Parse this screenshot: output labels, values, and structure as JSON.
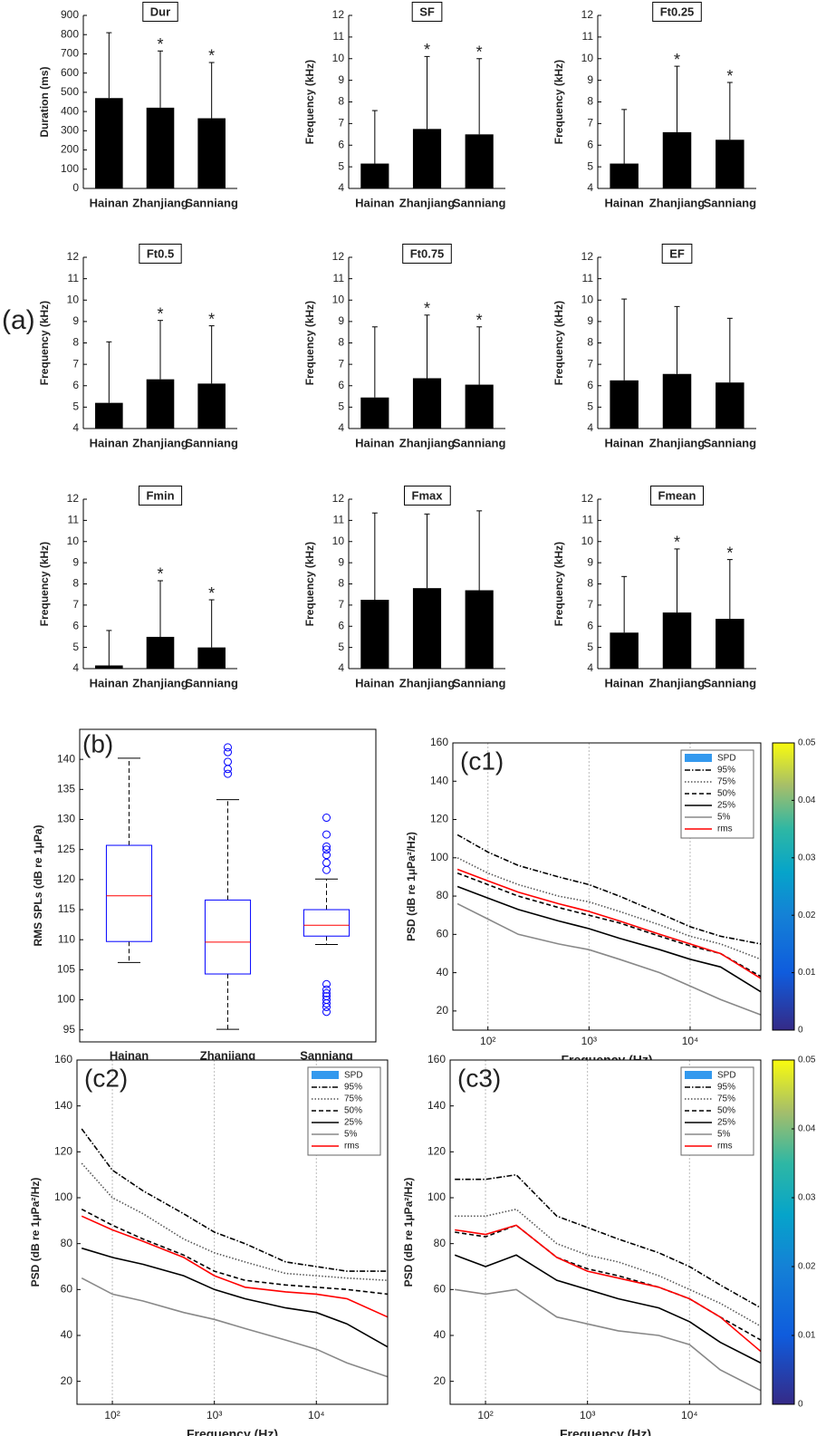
{
  "labels": {
    "a": "(a)"
  },
  "chart_data": [
    {
      "type": "bar",
      "title": "Dur",
      "ylabel": "Duration (ms)",
      "categories": [
        "Hainan",
        "Zhanjiang",
        "Sanniang"
      ],
      "values": [
        470,
        420,
        365
      ],
      "errors": [
        340,
        295,
        290
      ],
      "markers": [
        null,
        "*",
        "*"
      ],
      "color": "#000000",
      "ylim": [
        0,
        900
      ],
      "yticks": [
        0,
        100,
        200,
        300,
        400,
        500,
        600,
        700,
        800,
        900
      ]
    },
    {
      "type": "bar",
      "title": "SF",
      "ylabel": "Frequency (kHz)",
      "categories": [
        "Hainan",
        "Zhanjiang",
        "Sanniang"
      ],
      "values": [
        5.15,
        6.75,
        6.5
      ],
      "errors": [
        2.45,
        3.35,
        3.5
      ],
      "markers": [
        null,
        "*",
        "*"
      ],
      "color": "#000000",
      "ylim": [
        4,
        12
      ],
      "yticks": [
        4,
        5,
        6,
        7,
        8,
        9,
        10,
        11,
        12
      ]
    },
    {
      "type": "bar",
      "title": "Ft0.25",
      "ylabel": "Frequency (kHz)",
      "categories": [
        "Hainan",
        "Zhanjiang",
        "Sanniang"
      ],
      "values": [
        5.15,
        6.6,
        6.25
      ],
      "errors": [
        2.5,
        3.05,
        2.65
      ],
      "markers": [
        null,
        "*",
        "*"
      ],
      "color": "#000000",
      "ylim": [
        4,
        12
      ],
      "yticks": [
        4,
        5,
        6,
        7,
        8,
        9,
        10,
        11,
        12
      ]
    },
    {
      "type": "bar",
      "title": "Ft0.5",
      "ylabel": "Frequency (kHz)",
      "categories": [
        "Hainan",
        "Zhanjiang",
        "Sanniang"
      ],
      "values": [
        5.2,
        6.3,
        6.1
      ],
      "errors": [
        2.85,
        2.75,
        2.7
      ],
      "markers": [
        null,
        "*",
        "*"
      ],
      "color": "#000000",
      "ylim": [
        4,
        12
      ],
      "yticks": [
        4,
        5,
        6,
        7,
        8,
        9,
        10,
        11,
        12
      ]
    },
    {
      "type": "bar",
      "title": "Ft0.75",
      "ylabel": "Frequency (kHz)",
      "categories": [
        "Hainan",
        "Zhanjiang",
        "Sanniang"
      ],
      "values": [
        5.45,
        6.35,
        6.05
      ],
      "errors": [
        3.3,
        2.95,
        2.7
      ],
      "markers": [
        null,
        "*",
        "*"
      ],
      "color": "#000000",
      "ylim": [
        4,
        12
      ],
      "yticks": [
        4,
        5,
        6,
        7,
        8,
        9,
        10,
        11,
        12
      ]
    },
    {
      "type": "bar",
      "title": "EF",
      "ylabel": "Frequency (kHz)",
      "categories": [
        "Hainan",
        "Zhanjiang",
        "Sanniang"
      ],
      "values": [
        6.25,
        6.55,
        6.15
      ],
      "errors": [
        3.8,
        3.15,
        3.0
      ],
      "color": "#000000",
      "ylim": [
        4,
        12
      ],
      "yticks": [
        4,
        5,
        6,
        7,
        8,
        9,
        10,
        11,
        12
      ]
    },
    {
      "type": "bar",
      "title": "Fmin",
      "ylabel": "Frequency (kHz)",
      "categories": [
        "Hainan",
        "Zhanjiang",
        "Sanniang"
      ],
      "values": [
        4.15,
        5.5,
        5.0
      ],
      "errors": [
        1.65,
        2.65,
        2.25
      ],
      "markers": [
        null,
        "*",
        "*"
      ],
      "color": "#000000",
      "ylim": [
        4,
        12
      ],
      "yticks": [
        4,
        5,
        6,
        7,
        8,
        9,
        10,
        11,
        12
      ]
    },
    {
      "type": "bar",
      "title": "Fmax",
      "ylabel": "Frequency (kHz)",
      "categories": [
        "Hainan",
        "Zhanjiang",
        "Sanniang"
      ],
      "values": [
        7.25,
        7.8,
        7.7
      ],
      "errors": [
        4.1,
        3.5,
        3.75
      ],
      "color": "#000000",
      "ylim": [
        4,
        12
      ],
      "yticks": [
        4,
        5,
        6,
        7,
        8,
        9,
        10,
        11,
        12
      ]
    },
    {
      "type": "bar",
      "title": "Fmean",
      "ylabel": "Frequency (kHz)",
      "categories": [
        "Hainan",
        "Zhanjiang",
        "Sanniang"
      ],
      "values": [
        5.7,
        6.65,
        6.35
      ],
      "errors": [
        2.65,
        3.0,
        2.8
      ],
      "markers": [
        null,
        "*",
        "*"
      ],
      "color": "#000000",
      "ylim": [
        4,
        12
      ],
      "yticks": [
        4,
        5,
        6,
        7,
        8,
        9,
        10,
        11,
        12
      ]
    },
    {
      "type": "box",
      "panel_label": "(b)",
      "ylabel": "RMS SPLs (dB re 1μPa)",
      "categories": [
        "Hainan",
        "Zhanjiang",
        "Sanniang"
      ],
      "boxes": [
        {
          "min": 106.2,
          "q1": 109.7,
          "median": 117.3,
          "q3": 125.7,
          "max": 140.2,
          "outliers": []
        },
        {
          "min": 95.1,
          "q1": 104.3,
          "median": 109.6,
          "q3": 116.6,
          "max": 133.3,
          "outliers": [
            137.6,
            138.4,
            139.6,
            141.2,
            142.0
          ]
        },
        {
          "min": 109.2,
          "q1": 110.6,
          "median": 112.4,
          "q3": 115.0,
          "max": 120.1,
          "outliers": [
            121.6,
            122.8,
            124.1,
            125.0,
            125.5,
            127.5,
            130.3,
            102.6,
            101.7,
            101.1,
            100.6,
            100.0,
            99.4,
            98.8,
            98.0
          ]
        }
      ],
      "box_color": "#0000ff",
      "median_color": "#ff0000",
      "ylim": [
        93,
        145
      ],
      "yticks": [
        95,
        100,
        105,
        110,
        115,
        120,
        125,
        130,
        135,
        140
      ]
    },
    {
      "type": "line",
      "panel_label": "(c1)",
      "xlabel": "Frequency (Hz)",
      "ylabel": "PSD (dB re 1μPa²/Hz)",
      "xscale": "log",
      "x": [
        50,
        100,
        200,
        500,
        1000,
        2000,
        5000,
        10000,
        20000,
        50000
      ],
      "series": [
        {
          "name": "95%",
          "color": "#000000",
          "linestyle": "dashdot",
          "values": [
            112,
            103,
            96,
            90,
            86,
            80,
            71,
            64,
            59,
            55
          ]
        },
        {
          "name": "75%",
          "color": "#555555",
          "linestyle": "dotted",
          "values": [
            100,
            92,
            86,
            80,
            77,
            72,
            65,
            59,
            55,
            47
          ]
        },
        {
          "name": "50%",
          "color": "#000000",
          "linestyle": "dashed",
          "values": [
            92,
            86,
            80,
            74,
            70,
            66,
            59,
            54,
            50,
            38
          ]
        },
        {
          "name": "25%",
          "color": "#000000",
          "linestyle": "solid",
          "values": [
            85,
            79,
            73,
            67,
            63,
            58,
            52,
            47,
            43,
            30
          ]
        },
        {
          "name": "5%",
          "color": "#888888",
          "linestyle": "solid",
          "values": [
            76,
            68,
            60,
            55,
            52,
            47,
            40,
            33,
            26,
            18
          ]
        },
        {
          "name": "rms",
          "color": "#ff0000",
          "linestyle": "solid",
          "values": [
            94,
            88,
            82,
            76,
            72,
            67,
            60,
            55,
            50,
            37
          ]
        }
      ],
      "legend_patch": {
        "name": "SPD",
        "color": "#3399ee"
      },
      "legend": "upper right",
      "xlim": [
        45,
        50000
      ],
      "xticks": [
        {
          "value": 100,
          "label": "10²"
        },
        {
          "value": 1000,
          "label": "10³"
        },
        {
          "value": 10000,
          "label": "10⁴"
        }
      ],
      "ylim": [
        10,
        160
      ],
      "yticks": [
        20,
        40,
        60,
        80,
        100,
        120,
        140,
        160
      ],
      "grid": true,
      "colorbar": {
        "lim": [
          0,
          0.05
        ],
        "ticks": [
          0,
          0.01,
          0.02,
          0.03,
          0.04,
          0.05
        ]
      }
    },
    {
      "type": "line",
      "panel_label": "(c2)",
      "xlabel": "Frequency (Hz)",
      "ylabel": "PSD (dB re 1μPa²/Hz)",
      "xscale": "log",
      "x": [
        50,
        100,
        200,
        500,
        1000,
        2000,
        5000,
        10000,
        20000,
        50000
      ],
      "series": [
        {
          "name": "95%",
          "color": "#000000",
          "linestyle": "dashdot",
          "values": [
            130,
            112,
            103,
            93,
            85,
            80,
            72,
            70,
            68,
            68
          ]
        },
        {
          "name": "75%",
          "color": "#555555",
          "linestyle": "dotted",
          "values": [
            115,
            100,
            93,
            82,
            76,
            72,
            67,
            66,
            65,
            64
          ]
        },
        {
          "name": "50%",
          "color": "#000000",
          "linestyle": "dashed",
          "values": [
            95,
            88,
            82,
            75,
            68,
            64,
            62,
            61,
            60,
            58
          ]
        },
        {
          "name": "25%",
          "color": "#000000",
          "linestyle": "solid",
          "values": [
            78,
            74,
            71,
            66,
            60,
            56,
            52,
            50,
            45,
            35
          ]
        },
        {
          "name": "5%",
          "color": "#888888",
          "linestyle": "solid",
          "values": [
            65,
            58,
            55,
            50,
            47,
            43,
            38,
            34,
            28,
            22
          ]
        },
        {
          "name": "rms",
          "color": "#ff0000",
          "linestyle": "solid",
          "values": [
            92,
            86,
            81,
            74,
            66,
            61,
            59,
            58,
            56,
            48
          ]
        }
      ],
      "legend_patch": {
        "name": "SPD",
        "color": "#3399ee"
      },
      "legend": "upper right",
      "xlim": [
        45,
        50000
      ],
      "xticks": [
        {
          "value": 100,
          "label": "10²"
        },
        {
          "value": 1000,
          "label": "10³"
        },
        {
          "value": 10000,
          "label": "10⁴"
        }
      ],
      "ylim": [
        10,
        160
      ],
      "yticks": [
        20,
        40,
        60,
        80,
        100,
        120,
        140,
        160
      ],
      "grid": true
    },
    {
      "type": "line",
      "panel_label": "(c3)",
      "xlabel": "Frequency (Hz)",
      "ylabel": "PSD (dB re 1μPa²/Hz)",
      "xscale": "log",
      "x": [
        50,
        100,
        200,
        500,
        1000,
        2000,
        5000,
        10000,
        20000,
        50000
      ],
      "series": [
        {
          "name": "95%",
          "color": "#000000",
          "linestyle": "dashdot",
          "values": [
            108,
            108,
            110,
            92,
            87,
            82,
            76,
            70,
            62,
            52
          ]
        },
        {
          "name": "75%",
          "color": "#555555",
          "linestyle": "dotted",
          "values": [
            92,
            92,
            95,
            80,
            75,
            72,
            66,
            60,
            54,
            44
          ]
        },
        {
          "name": "50%",
          "color": "#000000",
          "linestyle": "dashed",
          "values": [
            85,
            83,
            88,
            74,
            69,
            66,
            61,
            56,
            48,
            38
          ]
        },
        {
          "name": "25%",
          "color": "#000000",
          "linestyle": "solid",
          "values": [
            75,
            70,
            75,
            64,
            60,
            56,
            52,
            46,
            37,
            28
          ]
        },
        {
          "name": "5%",
          "color": "#888888",
          "linestyle": "solid",
          "values": [
            60,
            58,
            60,
            48,
            45,
            42,
            40,
            36,
            25,
            16
          ]
        },
        {
          "name": "rms",
          "color": "#ff0000",
          "linestyle": "solid",
          "values": [
            86,
            84,
            88,
            74,
            68,
            65,
            61,
            56,
            48,
            33
          ]
        }
      ],
      "legend_patch": {
        "name": "SPD",
        "color": "#3399ee"
      },
      "legend": "upper right",
      "xlim": [
        45,
        50000
      ],
      "xticks": [
        {
          "value": 100,
          "label": "10²"
        },
        {
          "value": 1000,
          "label": "10³"
        },
        {
          "value": 10000,
          "label": "10⁴"
        }
      ],
      "ylim": [
        10,
        160
      ],
      "yticks": [
        20,
        40,
        60,
        80,
        100,
        120,
        140,
        160
      ],
      "grid": true,
      "colorbar": {
        "lim": [
          0,
          0.05
        ],
        "ticks": [
          0,
          0.01,
          0.02,
          0.03,
          0.04,
          0.05
        ]
      }
    }
  ]
}
